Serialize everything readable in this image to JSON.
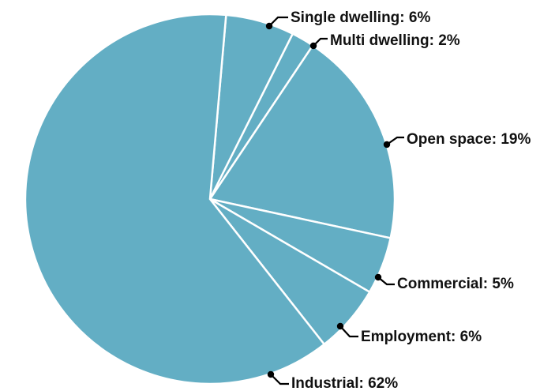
{
  "chart_data": {
    "type": "pie",
    "title": "",
    "colors": {
      "slice": "#63aec4",
      "separator": "#ffffff",
      "text": "#111111"
    },
    "slices": [
      {
        "name": "Single dwelling",
        "value": 6,
        "label": "Single dwelling: 6%"
      },
      {
        "name": "Multi dwelling",
        "value": 2,
        "label": "Multi dwelling: 2%"
      },
      {
        "name": "Open space",
        "value": 19,
        "label": "Open space: 19%"
      },
      {
        "name": "Commercial",
        "value": 5,
        "label": "Commercial: 5%"
      },
      {
        "name": "Employment",
        "value": 6,
        "label": "Employment: 6%"
      },
      {
        "name": "Industrial",
        "value": 62,
        "label": "Industrial: 62%"
      }
    ]
  }
}
